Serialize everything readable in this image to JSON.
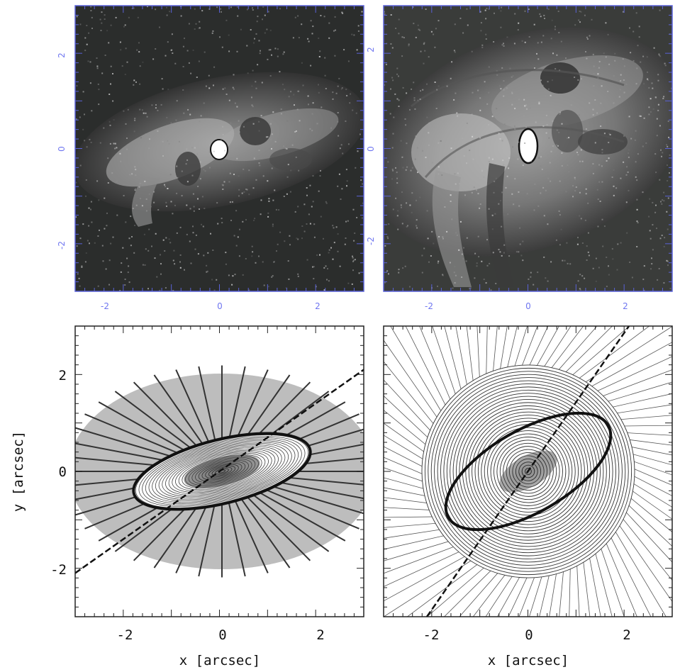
{
  "chart_data": [
    {
      "type": "heatmap",
      "panel": "top-left",
      "xlim": [
        -3,
        3
      ],
      "ylim": [
        -3,
        3
      ],
      "x_ticks": [
        "-2",
        "0",
        "2"
      ],
      "y_ticks": [
        "-2",
        "0",
        "2"
      ],
      "tick_color": "#6f76f0",
      "frame_color": "#5a62d8"
    },
    {
      "type": "heatmap",
      "panel": "top-right",
      "xlim": [
        -3,
        3
      ],
      "ylim": [
        -3,
        3
      ],
      "x_ticks": [
        "-2",
        "0",
        "2"
      ],
      "y_ticks": [
        "-2",
        "0",
        "2"
      ],
      "tick_color": "#6f76f0",
      "frame_color": "#5a62d8"
    },
    {
      "type": "line",
      "panel": "bottom-left",
      "xlabel": "x [arcsec]",
      "ylabel": "y [arcsec]",
      "xlim": [
        -3,
        3
      ],
      "ylim": [
        -3,
        3
      ],
      "x_ticks": [
        "-2",
        "0",
        "2"
      ],
      "y_ticks": [
        "-2",
        "0",
        "2"
      ],
      "annotations": {
        "diagonal_line": {
          "x": [
            -3,
            3
          ],
          "y": [
            -2.1,
            2.1
          ]
        },
        "outer_ring": {
          "rx": 3.2,
          "ry": 2.0
        },
        "inner_ellipse": {
          "rx": 1.85,
          "ry": 0.62,
          "tilt_deg": 14
        }
      }
    },
    {
      "type": "line",
      "panel": "bottom-right",
      "xlabel": "x [arcsec]",
      "xlim": [
        -3,
        3
      ],
      "ylim": [
        -3,
        3
      ],
      "x_ticks": [
        "-2",
        "0",
        "2"
      ],
      "annotations": {
        "diagonal_line": {
          "x": [
            -2.1,
            2.1
          ],
          "y": [
            -3,
            3
          ]
        },
        "inner_ellipse": {
          "rx": 1.9,
          "ry": 0.85,
          "tilt_deg": 30
        }
      }
    }
  ]
}
